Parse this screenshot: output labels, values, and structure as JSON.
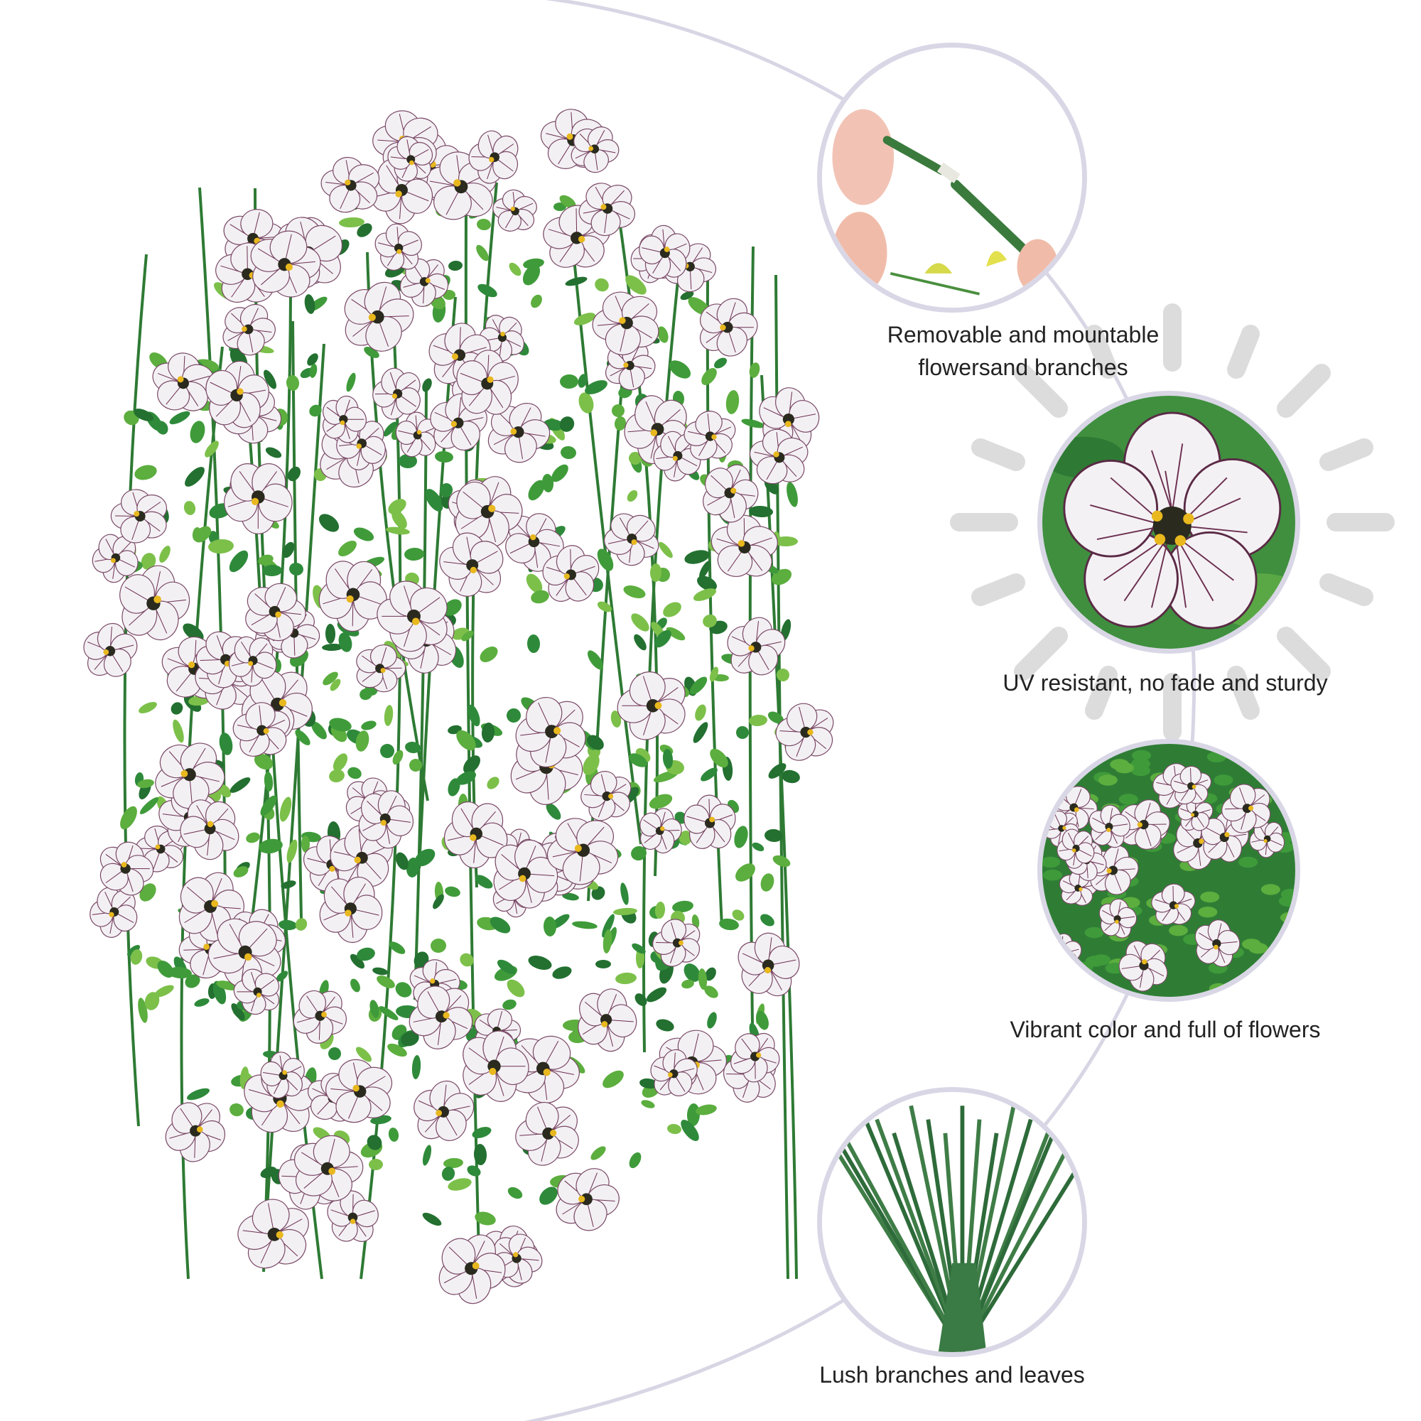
{
  "features": [
    {
      "caption_lines": [
        "Removable and mountable",
        "flowersand branches"
      ],
      "icon": "stem-connector-closeup"
    },
    {
      "caption_lines": [
        "UV resistant, no fade and sturdy"
      ],
      "icon": "flower-closeup"
    },
    {
      "caption_lines": [
        "Vibrant color and full of flowers"
      ],
      "icon": "flower-cluster-closeup"
    },
    {
      "caption_lines": [
        "Lush branches and leaves"
      ],
      "icon": "stems-bundle-closeup"
    }
  ],
  "colors": {
    "background": "#ffffff",
    "circle_border": "#d9d7e6",
    "arc_line": "#d8d6e4",
    "sun_icon": "#dcdcdc",
    "leaf_green": "#2e8a3a",
    "petal": "#f3f0f4",
    "vein": "#5a2a45",
    "flower_center": "#e8b81e"
  }
}
